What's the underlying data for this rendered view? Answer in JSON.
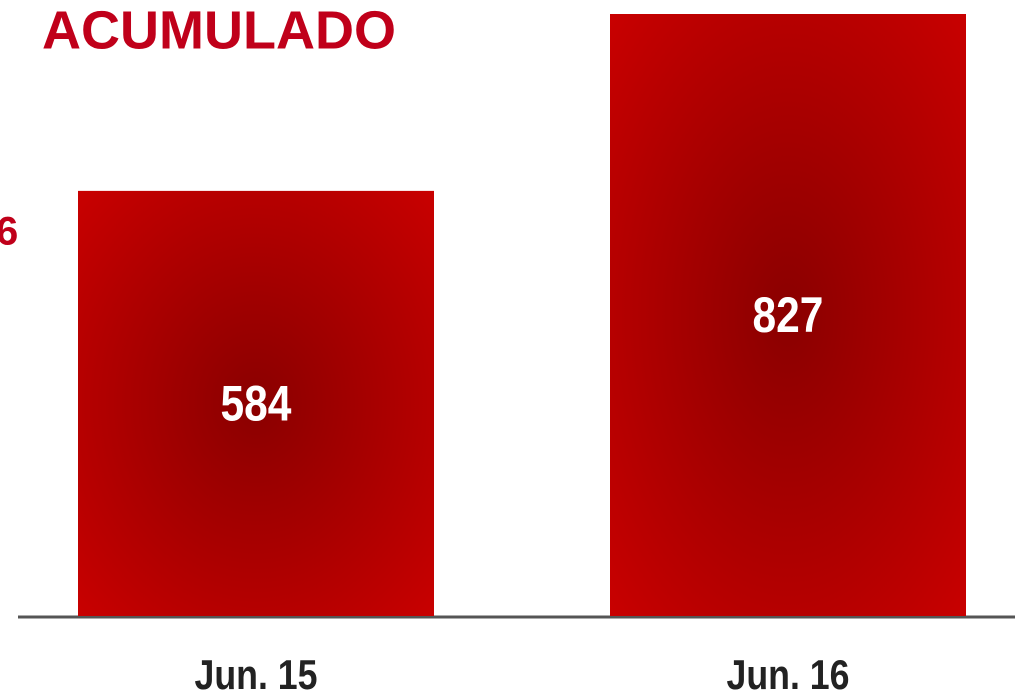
{
  "chart_data": {
    "type": "bar",
    "title": "ACUMULADO",
    "annotations": [
      "6"
    ],
    "categories": [
      "Jun. 15",
      "Jun. 16"
    ],
    "values": [
      584,
      827
    ],
    "color": "#c80000",
    "center_color": "#8a0000",
    "title_color": "#c0001a"
  }
}
